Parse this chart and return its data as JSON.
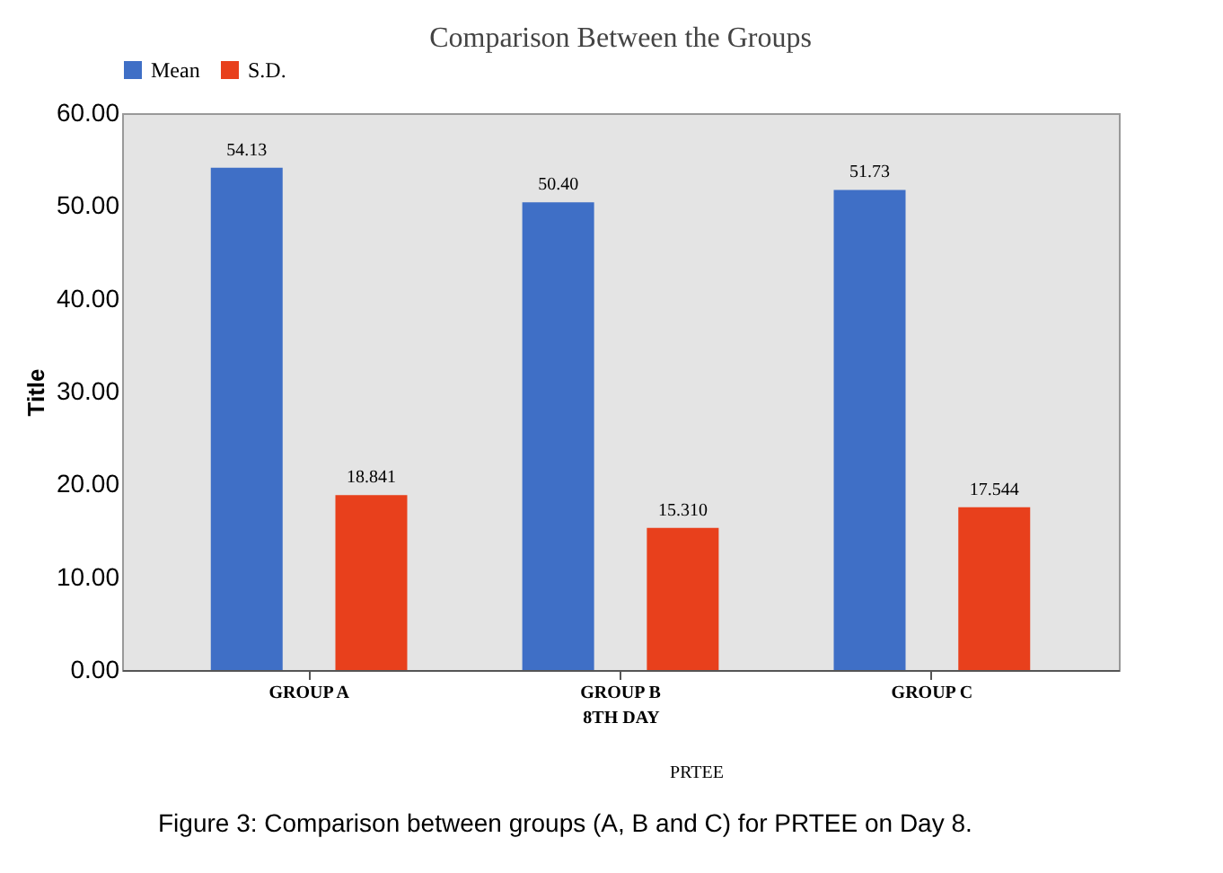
{
  "chart_data": {
    "type": "bar",
    "title": "Comparison Between the Groups",
    "ylabel": "Title",
    "xlabel": "8TH DAY",
    "categories": [
      "GROUP A",
      "GROUP B",
      "GROUP C"
    ],
    "series": [
      {
        "name": "Mean",
        "color": "#3f6fc6",
        "values": [
          54.13,
          50.4,
          51.73
        ],
        "value_labels": [
          "54.13",
          "50.40",
          "51.73"
        ]
      },
      {
        "name": "S.D.",
        "color": "#e8401c",
        "values": [
          18.841,
          15.31,
          17.544
        ],
        "value_labels": [
          "18.841",
          "15.310",
          "17.544"
        ]
      }
    ],
    "ylim": [
      0,
      60
    ],
    "yticks": [
      {
        "value": 0,
        "label": "0.00"
      },
      {
        "value": 10,
        "label": "10.00"
      },
      {
        "value": 20,
        "label": "20.00"
      },
      {
        "value": 30,
        "label": "30.00"
      },
      {
        "value": 40,
        "label": "40.00"
      },
      {
        "value": 50,
        "label": "50.00"
      },
      {
        "value": 60,
        "label": "60.00"
      }
    ],
    "grid": false,
    "legend": "top",
    "annotations": [
      "PRTEE",
      "Figure 3: Comparison between groups (A, B and C) for PRTEE on Day 8."
    ]
  }
}
